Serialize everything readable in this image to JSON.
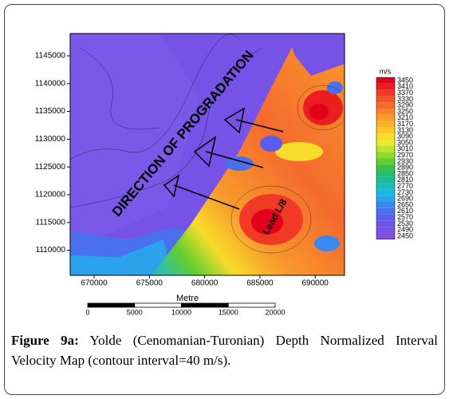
{
  "figure": {
    "y_ticks": [
      1145000,
      1140000,
      1135000,
      1130000,
      1125000,
      1120000,
      1115000,
      1110000
    ],
    "x_ticks": [
      670000,
      675000,
      680000,
      685000,
      690000
    ],
    "colorbar": {
      "unit": "m/s",
      "levels": [
        {
          "value": 3450,
          "color": "#e3001b"
        },
        {
          "value": 3410,
          "color": "#ea1d20"
        },
        {
          "value": 3370,
          "color": "#f03a25"
        },
        {
          "value": 3330,
          "color": "#f2522a"
        },
        {
          "value": 3290,
          "color": "#f46a2d"
        },
        {
          "value": 3250,
          "color": "#f7822e"
        },
        {
          "value": 3210,
          "color": "#f99a2c"
        },
        {
          "value": 3170,
          "color": "#fbb12a"
        },
        {
          "value": 3130,
          "color": "#fcc72a"
        },
        {
          "value": 3090,
          "color": "#f7dc2a"
        },
        {
          "value": 3050,
          "color": "#e5ec2a"
        },
        {
          "value": 3010,
          "color": "#bde52b"
        },
        {
          "value": 2970,
          "color": "#90da2c"
        },
        {
          "value": 2930,
          "color": "#5fce2f"
        },
        {
          "value": 2890,
          "color": "#38c43d"
        },
        {
          "value": 2850,
          "color": "#27bd6a"
        },
        {
          "value": 2810,
          "color": "#20bb96"
        },
        {
          "value": 2770,
          "color": "#1cbdbf"
        },
        {
          "value": 2730,
          "color": "#1db8de"
        },
        {
          "value": 2690,
          "color": "#2aa2ec"
        },
        {
          "value": 2650,
          "color": "#3a88ee"
        },
        {
          "value": 2610,
          "color": "#4a70ee"
        },
        {
          "value": 2570,
          "color": "#5a5eee"
        },
        {
          "value": 2530,
          "color": "#6a55ea"
        },
        {
          "value": 2490,
          "color": "#7652e6"
        },
        {
          "value": 2450,
          "color": "#8450e4"
        }
      ]
    },
    "scale_bar": {
      "title": "Metre",
      "ticks": [
        0,
        5000,
        10000,
        15000,
        20000
      ]
    },
    "annotations": [
      "DIRECTION OF PROGRADATION",
      "Lead L/8"
    ],
    "caption": {
      "label": "Figure 9a:",
      "text": " Yolde (Cenomanian-Turonian) Depth Normalized Interval Velocity Map (contour interval=40 m/s)."
    }
  }
}
